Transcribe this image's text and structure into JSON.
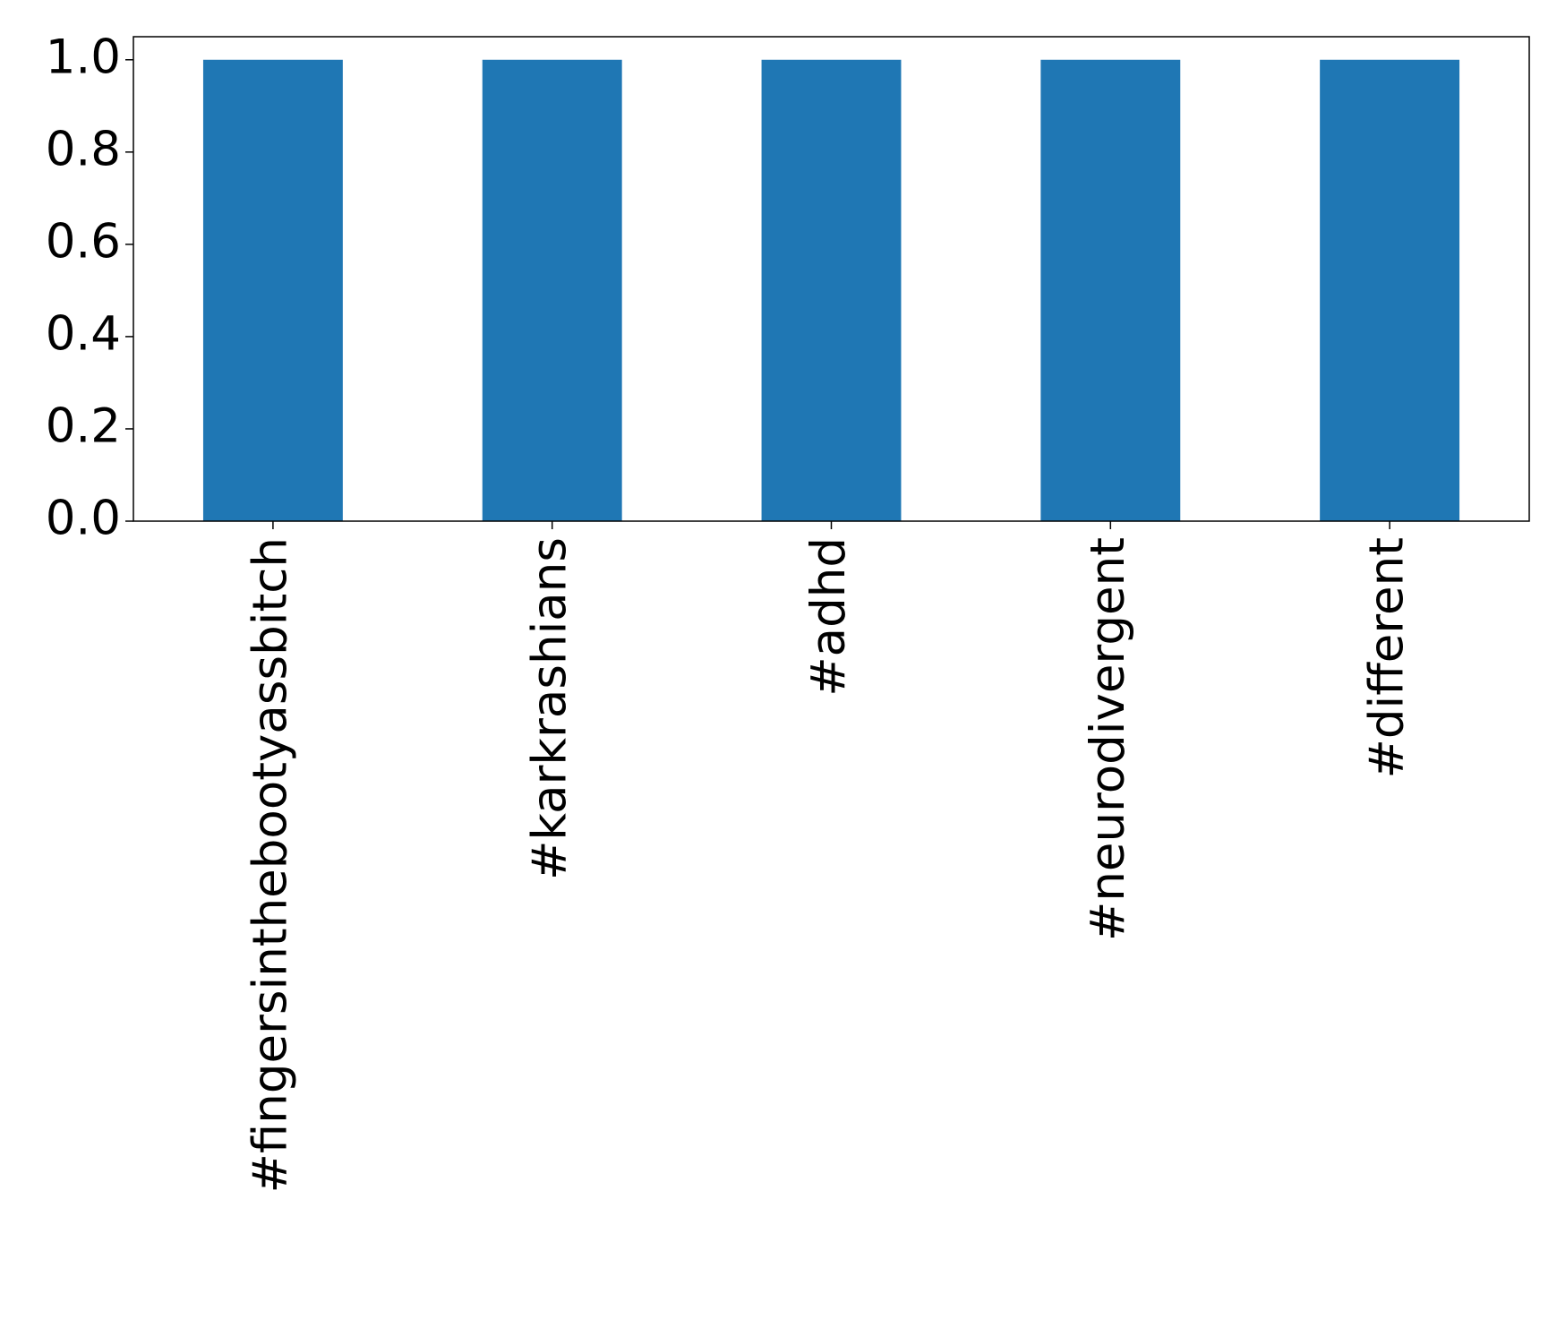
{
  "chart_data": {
    "type": "bar",
    "categories": [
      "#fingersinthebootyassbitch",
      "#karkrashians",
      "#adhd",
      "#neurodivergent",
      "#different"
    ],
    "values": [
      1,
      1,
      1,
      1,
      1
    ],
    "color": "#1f77b4",
    "ylim": [
      0,
      1.05
    ],
    "yticks": [
      {
        "value": 0,
        "label": "0.0"
      },
      {
        "value": 0.2,
        "label": "0.2"
      },
      {
        "value": 0.4,
        "label": "0.4"
      },
      {
        "value": 0.6,
        "label": "0.6"
      },
      {
        "value": 0.8,
        "label": "0.8"
      },
      {
        "value": 1,
        "label": "1.0"
      }
    ],
    "grid": false
  }
}
